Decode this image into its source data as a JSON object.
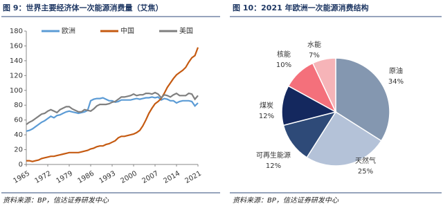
{
  "chart_data": [
    {
      "type": "line",
      "title": "图 9：世界主要经济体一次能源消费量（艾焦）",
      "source": "资料来源：BP，信达证券研发中心",
      "x": [
        1965,
        1966,
        1967,
        1968,
        1969,
        1970,
        1971,
        1972,
        1973,
        1974,
        1975,
        1976,
        1977,
        1978,
        1979,
        1980,
        1981,
        1982,
        1983,
        1984,
        1985,
        1986,
        1987,
        1988,
        1989,
        1990,
        1991,
        1992,
        1993,
        1994,
        1995,
        1996,
        1997,
        1998,
        1999,
        2000,
        2001,
        2002,
        2003,
        2004,
        2005,
        2006,
        2007,
        2008,
        2009,
        2010,
        2011,
        2012,
        2013,
        2014,
        2015,
        2016,
        2017,
        2018,
        2019,
        2020,
        2021
      ],
      "series": [
        {
          "name": "欧洲",
          "color": "#5b9bd5",
          "values": [
            45,
            46,
            48,
            51,
            54,
            57,
            59,
            62,
            65,
            63,
            66,
            67,
            69,
            71,
            72,
            71,
            70,
            69,
            70,
            71,
            73,
            86,
            88,
            89,
            89,
            90,
            88,
            86,
            86,
            84,
            85,
            87,
            87,
            87,
            87,
            88,
            89,
            88,
            89,
            90,
            90,
            91,
            90,
            91,
            87,
            89,
            88,
            86,
            86,
            83,
            85,
            86,
            86,
            86,
            85,
            79,
            83
          ]
        },
        {
          "name": "中国",
          "color": "#c55a11",
          "values": [
            5,
            5,
            4,
            5,
            6,
            8,
            9,
            10,
            11,
            11,
            12,
            13,
            14,
            15,
            16,
            16,
            16,
            16,
            17,
            18,
            19,
            21,
            22,
            24,
            25,
            25,
            27,
            28,
            30,
            32,
            36,
            38,
            38,
            39,
            40,
            41,
            43,
            46,
            52,
            60,
            69,
            76,
            82,
            85,
            89,
            96,
            104,
            110,
            116,
            121,
            124,
            127,
            131,
            138,
            144,
            147,
            158
          ]
        },
        {
          "name": "美国",
          "color": "#7f7f7f",
          "values": [
            54,
            57,
            59,
            62,
            65,
            68,
            69,
            72,
            74,
            72,
            70,
            74,
            76,
            78,
            78,
            75,
            73,
            71,
            71,
            74,
            73,
            72,
            75,
            79,
            81,
            81,
            81,
            82,
            84,
            85,
            88,
            91,
            91,
            92,
            93,
            95,
            93,
            94,
            94,
            96,
            96,
            95,
            97,
            95,
            90,
            94,
            93,
            91,
            94,
            96,
            93,
            93,
            93,
            96,
            95,
            88,
            93
          ]
        }
      ],
      "xlim": [
        1965,
        2021
      ],
      "xticks": [
        1965,
        1972,
        1979,
        1986,
        1993,
        2000,
        2007,
        2014,
        2021
      ],
      "ylim": [
        0,
        180
      ],
      "yticks": [
        0,
        20,
        40,
        60,
        80,
        100,
        120,
        140,
        160,
        180
      ]
    },
    {
      "type": "pie",
      "title": "图 10：2021 年欧洲一次能源消费结构",
      "source": "资料来源：BP，信达证券研发中心",
      "categories": [
        "原油",
        "天然气",
        "可再生能源",
        "煤炭",
        "核能",
        "水能"
      ],
      "values": [
        34,
        25,
        12,
        12,
        10,
        7
      ],
      "value_labels": [
        "34%",
        "25%",
        "12%",
        "12%",
        "10%",
        "7%"
      ],
      "colors": [
        "#8497b0",
        "#b4c2d8",
        "#2e4a78",
        "#14285e",
        "#f4707b",
        "#f6b4b8"
      ]
    }
  ]
}
